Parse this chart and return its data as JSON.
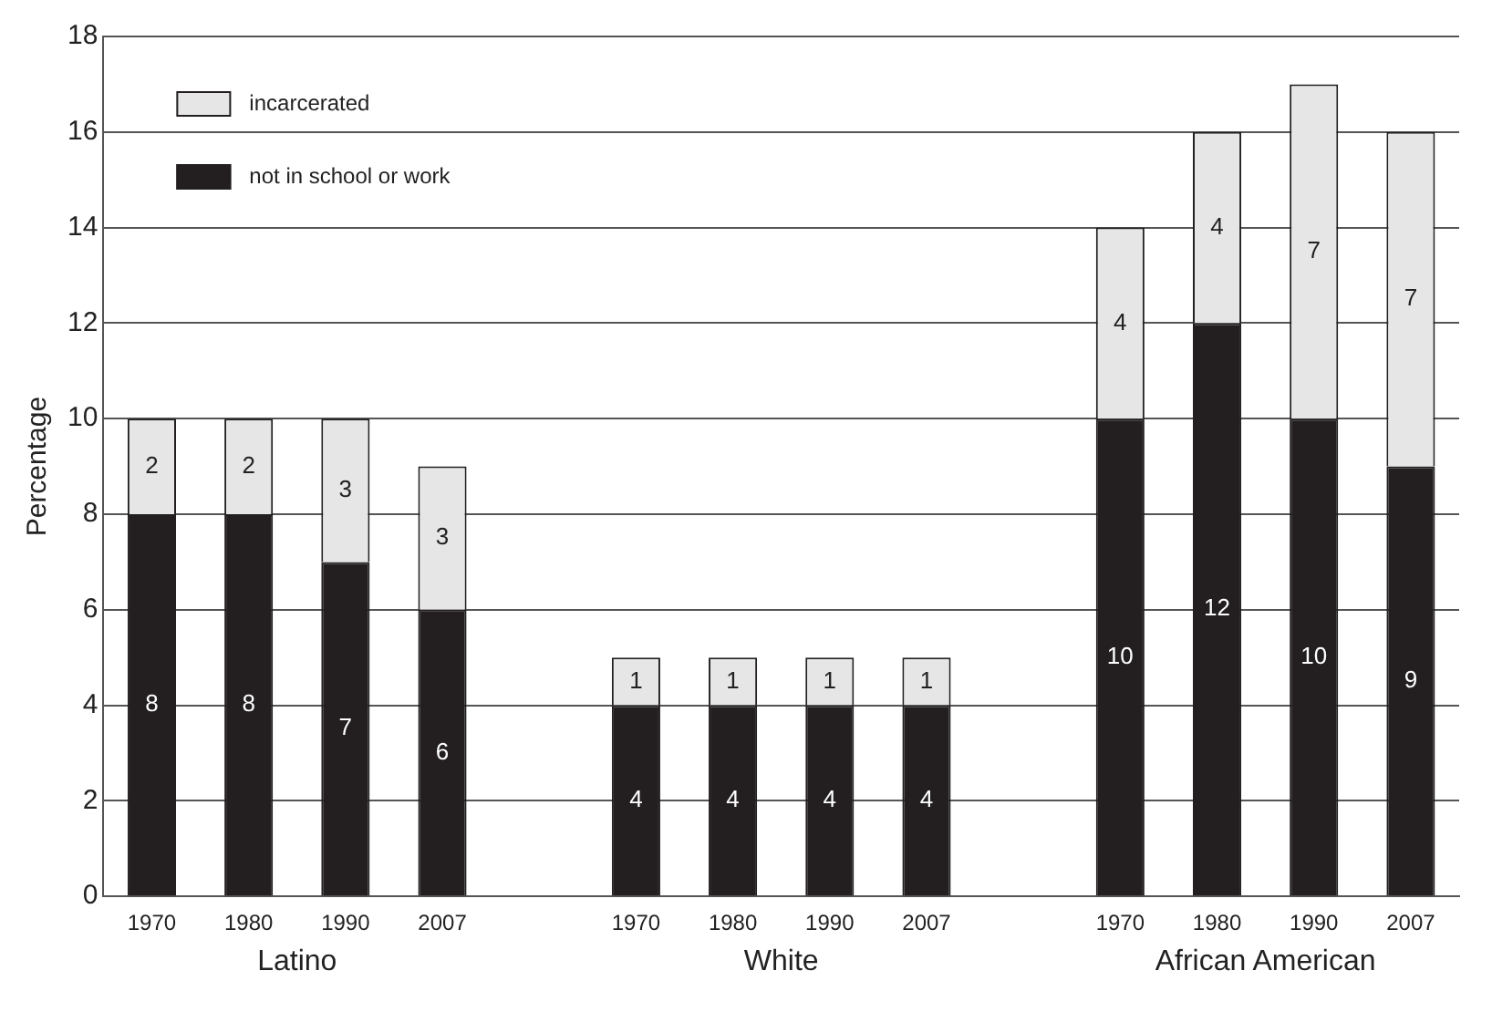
{
  "chart_data": {
    "type": "bar",
    "stacked": true,
    "ylabel": "Percentage",
    "categories": [
      "1970",
      "1980",
      "1990",
      "2007",
      null,
      "1970",
      "1980",
      "1990",
      "2007",
      null,
      "1970",
      "1980",
      "1990",
      "2007"
    ],
    "series": [
      {
        "name": "not in school or work",
        "color": "#231f20",
        "values": [
          8,
          8,
          7,
          6,
          null,
          4,
          4,
          4,
          4,
          null,
          10,
          12,
          10,
          9
        ]
      },
      {
        "name": "incarcerated",
        "color": "#e6e6e6",
        "values": [
          2,
          2,
          3,
          3,
          null,
          1,
          1,
          1,
          1,
          null,
          4,
          4,
          7,
          7
        ]
      }
    ],
    "ylim": [
      0,
      18
    ],
    "yticks": [
      0,
      2,
      4,
      6,
      8,
      10,
      12,
      14,
      16,
      18
    ],
    "grid": "y",
    "legend": "top left",
    "data_labels": true,
    "annotations": [
      "Latino",
      "White",
      "African American"
    ]
  }
}
